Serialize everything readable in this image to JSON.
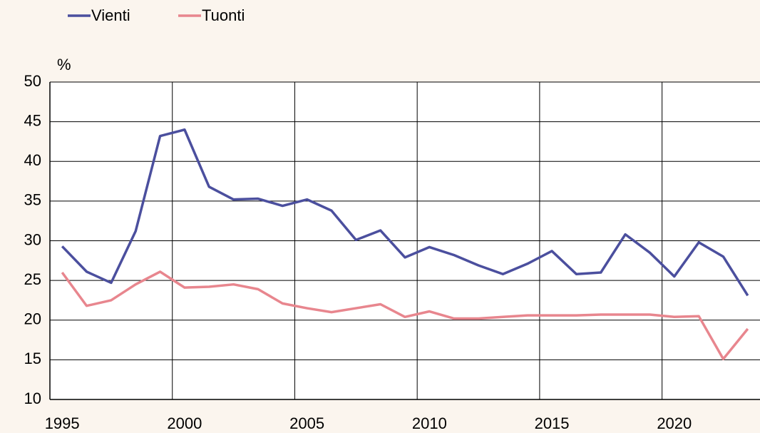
{
  "chart_data": {
    "type": "line",
    "y_label": "%",
    "categories": [
      "1995",
      null,
      null,
      null,
      null,
      "2000",
      null,
      null,
      null,
      null,
      "2005",
      null,
      null,
      null,
      null,
      "2010",
      null,
      null,
      null,
      null,
      "2015",
      null,
      null,
      null,
      null,
      "2020",
      null,
      null,
      null
    ],
    "series": [
      {
        "name": "Vienti",
        "color": "#4b4f9e",
        "values": [
          29.3,
          26.1,
          24.7,
          31.2,
          43.2,
          44.0,
          36.8,
          35.2,
          35.3,
          34.4,
          35.2,
          33.8,
          30.1,
          31.3,
          27.9,
          29.2,
          28.2,
          26.9,
          25.8,
          27.1,
          28.7,
          25.8,
          26.0,
          30.8,
          28.5,
          25.5,
          29.8,
          28.0,
          23.1
        ]
      },
      {
        "name": "Tuonti",
        "color": "#e8868e",
        "values": [
          26.0,
          21.8,
          22.5,
          24.5,
          26.1,
          24.1,
          24.2,
          24.5,
          23.9,
          22.1,
          21.5,
          21.0,
          21.5,
          22.0,
          20.4,
          21.1,
          20.2,
          20.2,
          20.4,
          20.6,
          20.6,
          20.6,
          20.7,
          20.7,
          20.7,
          20.4,
          20.5,
          15.1,
          18.9
        ]
      }
    ],
    "ylim": [
      10,
      50
    ],
    "yticks": [
      10,
      15,
      20,
      25,
      30,
      35,
      40,
      45,
      50
    ],
    "grid": true,
    "legend": "top"
  }
}
